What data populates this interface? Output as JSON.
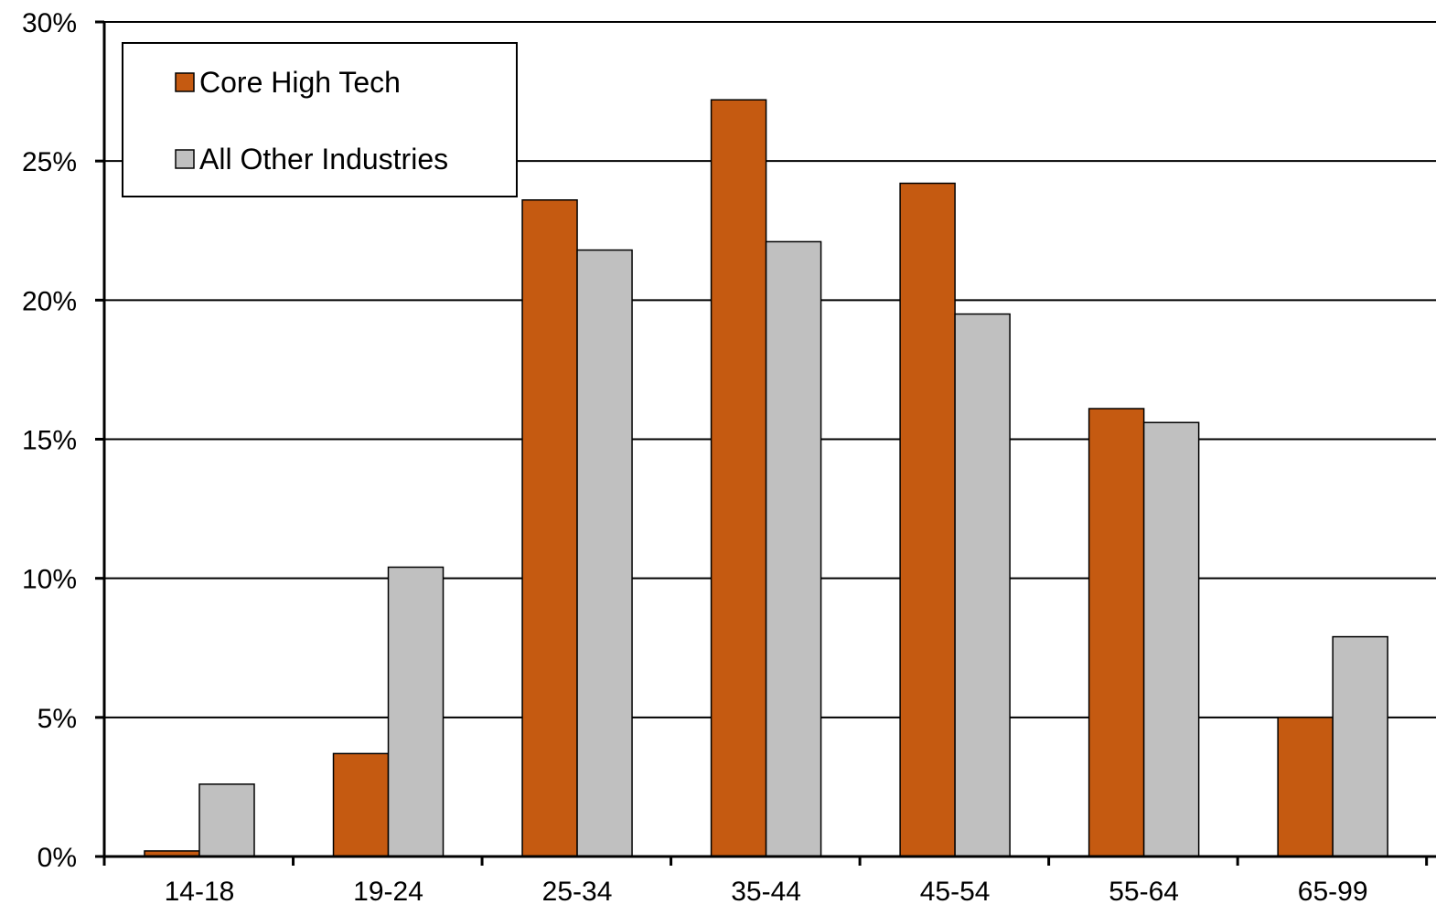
{
  "chart_data": {
    "type": "bar",
    "title": "",
    "xlabel": "",
    "ylabel": "",
    "categories": [
      "14-18",
      "19-24",
      "25-34",
      "35-44",
      "45-54",
      "55-64",
      "65-99"
    ],
    "series": [
      {
        "name": "Core High Tech",
        "color": "#C55A11",
        "values": [
          0.2,
          3.7,
          23.6,
          27.2,
          24.2,
          16.1,
          5.0
        ]
      },
      {
        "name": "All Other Industries",
        "color": "#C0C0C0",
        "values": [
          2.6,
          10.4,
          21.8,
          22.1,
          19.5,
          15.6,
          7.9
        ]
      }
    ],
    "ylim": [
      0,
      30
    ],
    "yticks": [
      0,
      5,
      10,
      15,
      20,
      25,
      30
    ],
    "ytick_labels": [
      "0%",
      "5%",
      "10%",
      "15%",
      "20%",
      "25%",
      "30%"
    ],
    "grid": true,
    "legend_position": "top-left"
  }
}
